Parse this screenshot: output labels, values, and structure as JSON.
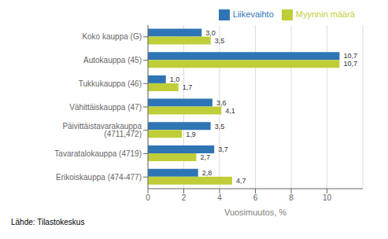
{
  "chart_data": {
    "type": "bar",
    "orientation": "horizontal",
    "categories": [
      "Erikoiskauppa (474-477)",
      "Tavaratalokauppa (4719)",
      "Päivittäistavarakauppa (4711,472)",
      "Vähittäiskauppa (47)",
      "Tukkukauppa (46)",
      "Autokauppa (45)",
      "Koko kauppa (G)"
    ],
    "series": [
      {
        "name": "Liikevaihto",
        "color": "#2E75B6",
        "values": [
          2.8,
          3.7,
          3.5,
          3.6,
          1.0,
          10.7,
          3.0
        ],
        "value_labels": [
          "2,8",
          "3,7",
          "3,5",
          "3,6",
          "1,0",
          "10,7",
          "3,0"
        ]
      },
      {
        "name": "Myynnin määrä",
        "color": "#BFCE38",
        "values": [
          4.7,
          2.7,
          1.9,
          4.1,
          1.7,
          10.7,
          3.5
        ],
        "value_labels": [
          "4,7",
          "2,7",
          "1,9",
          "4,1",
          "1,7",
          "10,7",
          "3,5"
        ]
      }
    ],
    "xlabel": "Vuosimuutos, %",
    "xlim": [
      0,
      12
    ],
    "xticks": [
      0,
      2,
      4,
      6,
      8,
      10
    ],
    "grid": true,
    "legend": "upper right",
    "data_labels": true,
    "annotations": [
      "Lähde: Tilastokeskus"
    ]
  }
}
